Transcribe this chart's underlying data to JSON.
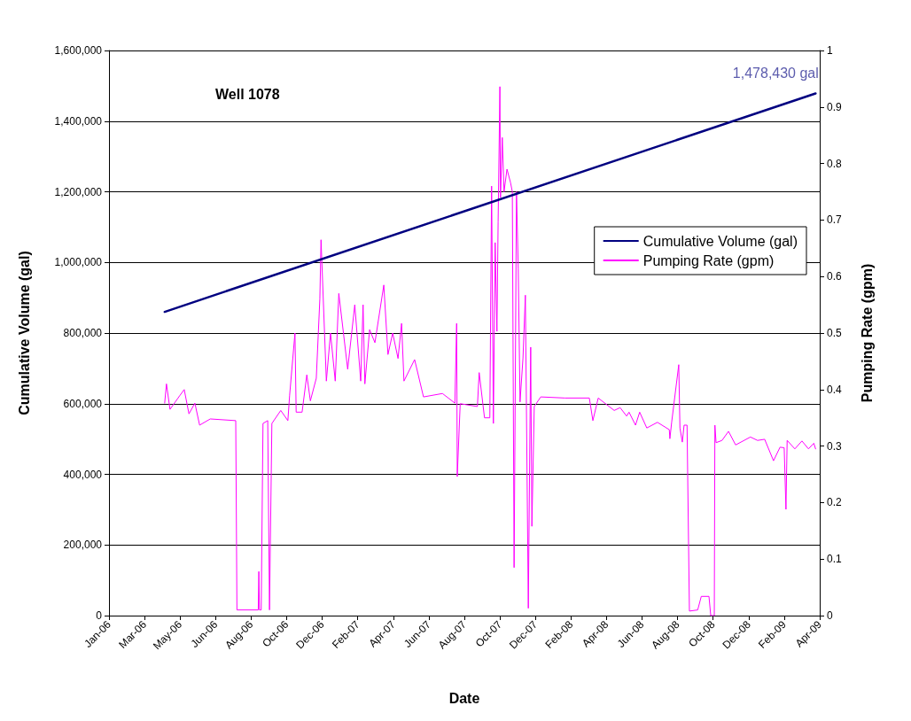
{
  "chart_data": {
    "type": "line",
    "title": "Well 1078",
    "xlabel": "Date",
    "ylabel": "Cumulative Volume (gal)",
    "y2label": "Pumping Rate (gpm)",
    "xlim": [
      "2006-01-01",
      "2009-04-15"
    ],
    "xticks": [
      {
        "value": "2006-01-01",
        "label": "Jan-06"
      },
      {
        "value": "2006-03-02",
        "label": "Mar-06"
      },
      {
        "value": "2006-05-01",
        "label": "May-06"
      },
      {
        "value": "2006-06-30",
        "label": "Jun-06"
      },
      {
        "value": "2006-08-29",
        "label": "Aug-06"
      },
      {
        "value": "2006-10-28",
        "label": "Oct-06"
      },
      {
        "value": "2006-12-27",
        "label": "Dec-06"
      },
      {
        "value": "2007-02-25",
        "label": "Feb-07"
      },
      {
        "value": "2007-04-26",
        "label": "Apr-07"
      },
      {
        "value": "2007-06-25",
        "label": "Jun-07"
      },
      {
        "value": "2007-08-24",
        "label": "Aug-07"
      },
      {
        "value": "2007-10-23",
        "label": "Oct-07"
      },
      {
        "value": "2007-12-22",
        "label": "Dec-07"
      },
      {
        "value": "2008-02-20",
        "label": "Feb-08"
      },
      {
        "value": "2008-04-20",
        "label": "Apr-08"
      },
      {
        "value": "2008-06-19",
        "label": "Jun-08"
      },
      {
        "value": "2008-08-18",
        "label": "Aug-08"
      },
      {
        "value": "2008-10-17",
        "label": "Oct-08"
      },
      {
        "value": "2008-12-16",
        "label": "Dec-08"
      },
      {
        "value": "2009-02-14",
        "label": "Feb-09"
      },
      {
        "value": "2009-04-15",
        "label": "Apr-09"
      }
    ],
    "ylim": [
      0,
      1600000
    ],
    "yticks": [
      0,
      {
        "value": 200000,
        "label": "200,000"
      },
      {
        "value": 400000,
        "label": "400,000"
      },
      {
        "value": 600000,
        "label": "600,000"
      },
      {
        "value": 800000,
        "label": "800,000"
      },
      {
        "value": 1000000,
        "label": "1,000,000"
      },
      {
        "value": 1200000,
        "label": "1,200,000"
      },
      {
        "value": 1400000,
        "label": "1,400,000"
      },
      {
        "value": 1600000,
        "label": "1,600,000"
      }
    ],
    "y2lim": [
      0,
      1
    ],
    "y2ticks": [
      0,
      0.1,
      0.2,
      0.3,
      0.4,
      0.5,
      0.6,
      0.7,
      0.8,
      0.9,
      1
    ],
    "grid": "y",
    "legend": "right",
    "marker": "none",
    "line_style": "solid",
    "annotations": [
      {
        "text": "1,478,430 gal",
        "x": "2009-04-08",
        "y": 1478430
      }
    ],
    "series": [
      {
        "name": "Cumulative Volume (gal)",
        "color": "#000080",
        "x": [
          "2006-04-05",
          "2009-04-08"
        ],
        "values": [
          860000,
          1478430
        ]
      },
      {
        "name": "Pumping Rate (gpm)",
        "color": "#ff00ff",
        "axis": "y2",
        "x": [
          "2006-04-05",
          "2006-04-08",
          "2006-04-14",
          "2006-05-01",
          "2006-05-08",
          "2006-05-16",
          "2006-05-26",
          "2006-06-03",
          "2006-06-21",
          "2006-08-03",
          "2006-08-05",
          "2006-09-10",
          "2006-09-11",
          "2006-09-12",
          "2006-09-15",
          "2006-09-18",
          "2006-09-26",
          "2006-09-29",
          "2006-10-03",
          "2006-10-18",
          "2006-10-30",
          "2006-11-02",
          "2006-11-11",
          "2006-11-13",
          "2006-11-23",
          "2006-12-01",
          "2006-12-07",
          "2006-12-17",
          "2006-12-23",
          "2006-12-25",
          "2007-01-03",
          "2007-01-10",
          "2007-01-18",
          "2007-01-24",
          "2007-02-08",
          "2007-02-20",
          "2007-03-02",
          "2007-03-06",
          "2007-03-09",
          "2007-03-17",
          "2007-03-26",
          "2007-04-10",
          "2007-04-17",
          "2007-04-25",
          "2007-05-04",
          "2007-05-10",
          "2007-05-14",
          "2007-06-01",
          "2007-06-16",
          "2007-07-18",
          "2007-08-08",
          "2007-08-11",
          "2007-08-12",
          "2007-08-17",
          "2007-09-15",
          "2007-09-18",
          "2007-09-27",
          "2007-10-06",
          "2007-10-09",
          "2007-10-12",
          "2007-10-15",
          "2007-10-18",
          "2007-10-20",
          "2007-10-23",
          "2007-10-24",
          "2007-10-27",
          "2007-10-30",
          "2007-11-04",
          "2007-11-10",
          "2007-11-13",
          "2007-11-16",
          "2007-11-20",
          "2007-11-23",
          "2007-11-26",
          "2007-12-01",
          "2007-12-05",
          "2007-12-10",
          "2007-12-14",
          "2007-12-16",
          "2007-12-20",
          "2007-12-31",
          "2008-02-10",
          "2008-03-22",
          "2008-03-28",
          "2008-04-06",
          "2008-05-03",
          "2008-05-13",
          "2008-05-24",
          "2008-05-28",
          "2008-06-08",
          "2008-06-15",
          "2008-06-27",
          "2008-07-15",
          "2008-08-04",
          "2008-08-05",
          "2008-08-08",
          "2008-08-20",
          "2008-08-22",
          "2008-08-26",
          "2008-08-29",
          "2008-09-03",
          "2008-09-07",
          "2008-09-21",
          "2008-09-27",
          "2008-10-10",
          "2008-10-13",
          "2008-10-19",
          "2008-10-20",
          "2008-10-22",
          "2008-11-01",
          "2008-11-12",
          "2008-11-24",
          "2008-12-19",
          "2008-12-31",
          "2009-01-12",
          "2009-01-27",
          "2009-02-07",
          "2009-02-14",
          "2009-02-17",
          "2009-02-19",
          "2009-03-04",
          "2009-03-16",
          "2009-03-27",
          "2009-04-05",
          "2009-04-08"
        ],
        "values": [
          0.376,
          0.41,
          0.365,
          0.39,
          0.4,
          0.357,
          0.376,
          0.337,
          0.348,
          0.345,
          0.01,
          0.01,
          0.078,
          0.01,
          0.01,
          0.34,
          0.345,
          0.01,
          0.34,
          0.363,
          0.345,
          0.39,
          0.5,
          0.36,
          0.36,
          0.426,
          0.38,
          0.42,
          0.56,
          0.665,
          0.415,
          0.5,
          0.415,
          0.57,
          0.436,
          0.55,
          0.415,
          0.55,
          0.41,
          0.506,
          0.483,
          0.585,
          0.462,
          0.5,
          0.455,
          0.517,
          0.415,
          0.453,
          0.387,
          0.393,
          0.376,
          0.517,
          0.246,
          0.375,
          0.37,
          0.43,
          0.35,
          0.35,
          0.76,
          0.34,
          0.66,
          0.503,
          0.697,
          0.936,
          0.74,
          0.846,
          0.75,
          0.79,
          0.766,
          0.75,
          0.085,
          0.75,
          0.614,
          0.378,
          0.456,
          0.567,
          0.013,
          0.475,
          0.158,
          0.37,
          0.387,
          0.385,
          0.385,
          0.345,
          0.385,
          0.363,
          0.368,
          0.353,
          0.36,
          0.337,
          0.36,
          0.332,
          0.342,
          0.329,
          0.313,
          0.342,
          0.444,
          0.332,
          0.307,
          0.337,
          0.337,
          0.008,
          0.01,
          0.034,
          0.034,
          0,
          0,
          0.337,
          0.306,
          0.31,
          0.326,
          0.302,
          0.316,
          0.31,
          0.312,
          0.274,
          0.298,
          0.297,
          0.188,
          0.31,
          0.295,
          0.309,
          0.295,
          0.305,
          0.295
        ]
      }
    ]
  }
}
